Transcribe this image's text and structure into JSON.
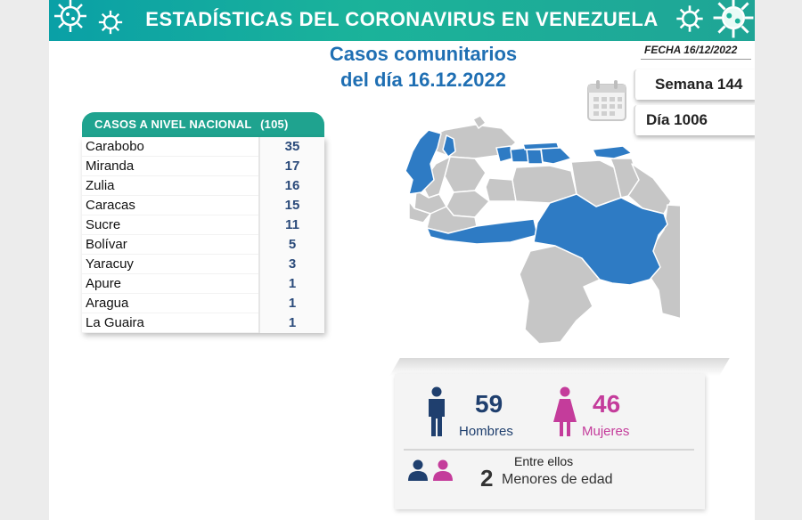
{
  "banner": {
    "title": "ESTADÍSTICAS DEL CORONAVIRUS EN VENEZUELA"
  },
  "header": {
    "subtitle_line1": "Casos comunitarios",
    "subtitle_line2": "del día 16.12.2022",
    "fecha": "FECHA 16/12/2022",
    "semana": "Semana 144",
    "dia": "Día 1006"
  },
  "table": {
    "title": "CASOS A NIVEL NACIONAL",
    "total": "(105)",
    "rows": [
      {
        "state": "Carabobo",
        "cases": "35"
      },
      {
        "state": "Miranda",
        "cases": "17"
      },
      {
        "state": "Zulia",
        "cases": "16"
      },
      {
        "state": "Caracas",
        "cases": "15"
      },
      {
        "state": "Sucre",
        "cases": "11"
      },
      {
        "state": "Bolívar",
        "cases": "5"
      },
      {
        "state": "Yaracuy",
        "cases": "3"
      },
      {
        "state": "Apure",
        "cases": "1"
      },
      {
        "state": "Aragua",
        "cases": "1"
      },
      {
        "state": "La Guaira",
        "cases": "1"
      }
    ]
  },
  "stats": {
    "men_count": "59",
    "men_label": "Hombres",
    "women_count": "46",
    "women_label": "Mujeres",
    "among_label": "Entre ellos",
    "minors_count": "2",
    "minors_label": "Menores de edad"
  },
  "colors": {
    "banner": "#13a99c",
    "title_blue": "#1f6fb3",
    "map_highlight": "#2e7bc4",
    "map_other": "#c6c6c6",
    "men": "#1f3f6e",
    "women": "#c43c9b"
  },
  "icons": {
    "calendar": "calendar-icon",
    "virus": "virus-icon",
    "man": "man-icon",
    "woman": "woman-icon"
  }
}
